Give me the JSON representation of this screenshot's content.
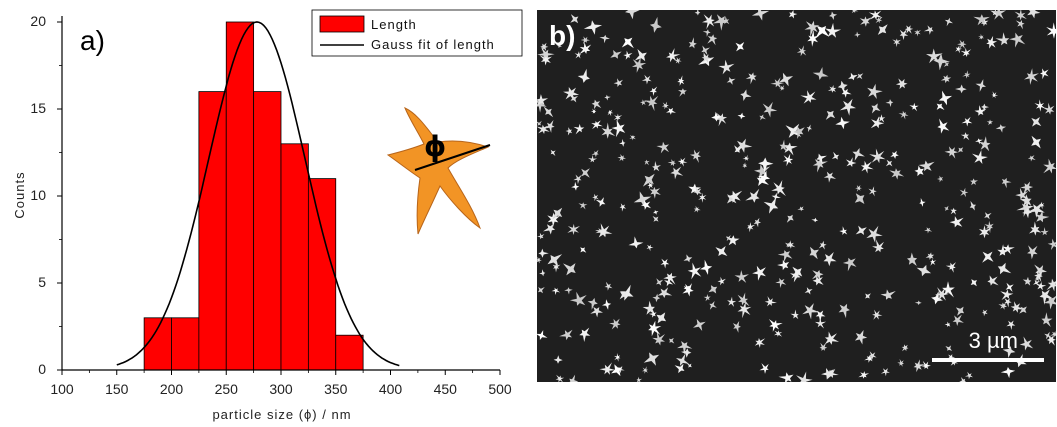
{
  "chart_data": {
    "type": "bar",
    "panel_label": "a)",
    "xlabel": "particle size (ϕ) / nm",
    "ylabel": "Counts",
    "xlim": [
      100,
      500
    ],
    "ylim": [
      0,
      20
    ],
    "x_ticks": [
      100,
      150,
      200,
      250,
      300,
      350,
      400,
      450,
      500
    ],
    "y_ticks": [
      0,
      5,
      10,
      15,
      20
    ],
    "bin_width": 25,
    "bins": [
      {
        "start": 175,
        "value": 3
      },
      {
        "start": 200,
        "value": 3
      },
      {
        "start": 225,
        "value": 16
      },
      {
        "start": 250,
        "value": 20
      },
      {
        "start": 275,
        "value": 16
      },
      {
        "start": 300,
        "value": 13
      },
      {
        "start": 325,
        "value": 11
      },
      {
        "start": 350,
        "value": 2
      }
    ],
    "gauss_fit": {
      "center": 278,
      "sigma": 44,
      "amplitude": 20,
      "range": [
        150,
        408
      ]
    },
    "legend": {
      "placement": "top-right",
      "entries": [
        "Length",
        "Gauss fit of length"
      ]
    },
    "colors": {
      "bar_fill": "#ff0000",
      "bar_edge": "#000000",
      "fit_line": "#000000",
      "particle": "#f29425"
    },
    "inset_symbol": "ϕ"
  },
  "image_panel": {
    "label": "b)",
    "scale_bar_text": "3 µm"
  }
}
